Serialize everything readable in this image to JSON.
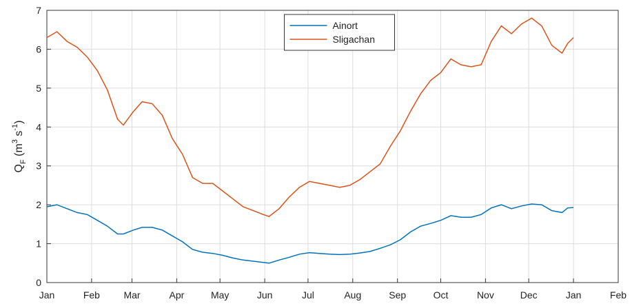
{
  "chart_data": {
    "type": "line",
    "ylabel": [
      "Q",
      "F",
      " (m",
      "3",
      " s",
      "-1",
      ")"
    ],
    "x": [
      0,
      7,
      14,
      21,
      28,
      35,
      42,
      49,
      53,
      60,
      66,
      73,
      80,
      87,
      94,
      101,
      108,
      115,
      122,
      129,
      136,
      143,
      150,
      154,
      161,
      168,
      175,
      182,
      189,
      196,
      203,
      210,
      217,
      224,
      231,
      238,
      245,
      252,
      259,
      266,
      273,
      280,
      287,
      294,
      301,
      308,
      315,
      322,
      329,
      336,
      343,
      350,
      357,
      361,
      365
    ],
    "series": [
      {
        "name": "Ainort",
        "color": "#0072bd",
        "values": [
          1.95,
          2.0,
          1.9,
          1.8,
          1.75,
          1.6,
          1.45,
          1.25,
          1.25,
          1.35,
          1.42,
          1.42,
          1.35,
          1.2,
          1.05,
          0.85,
          0.78,
          0.75,
          0.7,
          0.63,
          0.58,
          0.55,
          0.52,
          0.5,
          0.58,
          0.65,
          0.73,
          0.77,
          0.75,
          0.73,
          0.72,
          0.73,
          0.76,
          0.8,
          0.88,
          0.97,
          1.1,
          1.3,
          1.45,
          1.52,
          1.6,
          1.72,
          1.68,
          1.68,
          1.75,
          1.92,
          2.0,
          1.9,
          1.97,
          2.02,
          2.0,
          1.85,
          1.8,
          1.92,
          1.93
        ]
      },
      {
        "name": "Sligachan",
        "color": "#d95319",
        "values": [
          6.3,
          6.45,
          6.2,
          6.05,
          5.8,
          5.45,
          4.95,
          4.2,
          4.05,
          4.4,
          4.65,
          4.6,
          4.3,
          3.7,
          3.3,
          2.7,
          2.55,
          2.55,
          2.35,
          2.15,
          1.95,
          1.85,
          1.75,
          1.7,
          1.9,
          2.2,
          2.45,
          2.6,
          2.55,
          2.5,
          2.45,
          2.5,
          2.65,
          2.85,
          3.05,
          3.5,
          3.9,
          4.4,
          4.85,
          5.2,
          5.4,
          5.75,
          5.6,
          5.55,
          5.6,
          6.2,
          6.6,
          6.4,
          6.65,
          6.8,
          6.6,
          6.1,
          5.9,
          6.15,
          6.3
        ]
      }
    ],
    "xlim": [
      0,
      396
    ],
    "xticks": [
      {
        "value": 0,
        "label": "Jan"
      },
      {
        "value": 31,
        "label": "Feb"
      },
      {
        "value": 59,
        "label": "Mar"
      },
      {
        "value": 90,
        "label": "Apr"
      },
      {
        "value": 120,
        "label": "May"
      },
      {
        "value": 151,
        "label": "Jun"
      },
      {
        "value": 181,
        "label": "Jul"
      },
      {
        "value": 212,
        "label": "Aug"
      },
      {
        "value": 243,
        "label": "Sep"
      },
      {
        "value": 273,
        "label": "Oct"
      },
      {
        "value": 304,
        "label": "Nov"
      },
      {
        "value": 334,
        "label": "Dec"
      },
      {
        "value": 365,
        "label": "Jan"
      },
      {
        "value": 396,
        "label": "Feb"
      }
    ],
    "ylim": [
      0,
      7
    ],
    "yticks": [
      0,
      1,
      2,
      3,
      4,
      5,
      6,
      7
    ],
    "grid": true,
    "legend": "top"
  }
}
